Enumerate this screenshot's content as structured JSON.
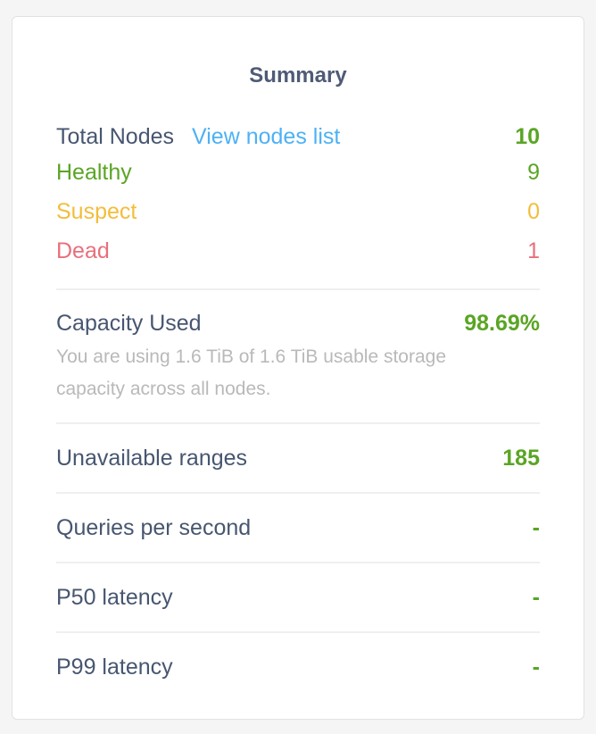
{
  "summary": {
    "title": "Summary",
    "total_nodes": {
      "label": "Total Nodes",
      "link": "View nodes list",
      "value": "10"
    },
    "healthy": {
      "label": "Healthy",
      "value": "9"
    },
    "suspect": {
      "label": "Suspect",
      "value": "0"
    },
    "dead": {
      "label": "Dead",
      "value": "1"
    },
    "capacity": {
      "label": "Capacity Used",
      "value": "98.69%",
      "description": "You are using 1.6 TiB of 1.6 TiB usable storage capacity across all nodes."
    },
    "unavailable_ranges": {
      "label": "Unavailable ranges",
      "value": "185"
    },
    "qps": {
      "label": "Queries per second",
      "value": "-"
    },
    "p50": {
      "label": "P50 latency",
      "value": "-"
    },
    "p99": {
      "label": "P99 latency",
      "value": "-"
    }
  },
  "colors": {
    "text": "#475670",
    "green": "#5aa524",
    "link": "#4db1f5",
    "suspect": "#f3bd3b",
    "dead": "#e8707b",
    "muted": "#b9b9b9"
  }
}
